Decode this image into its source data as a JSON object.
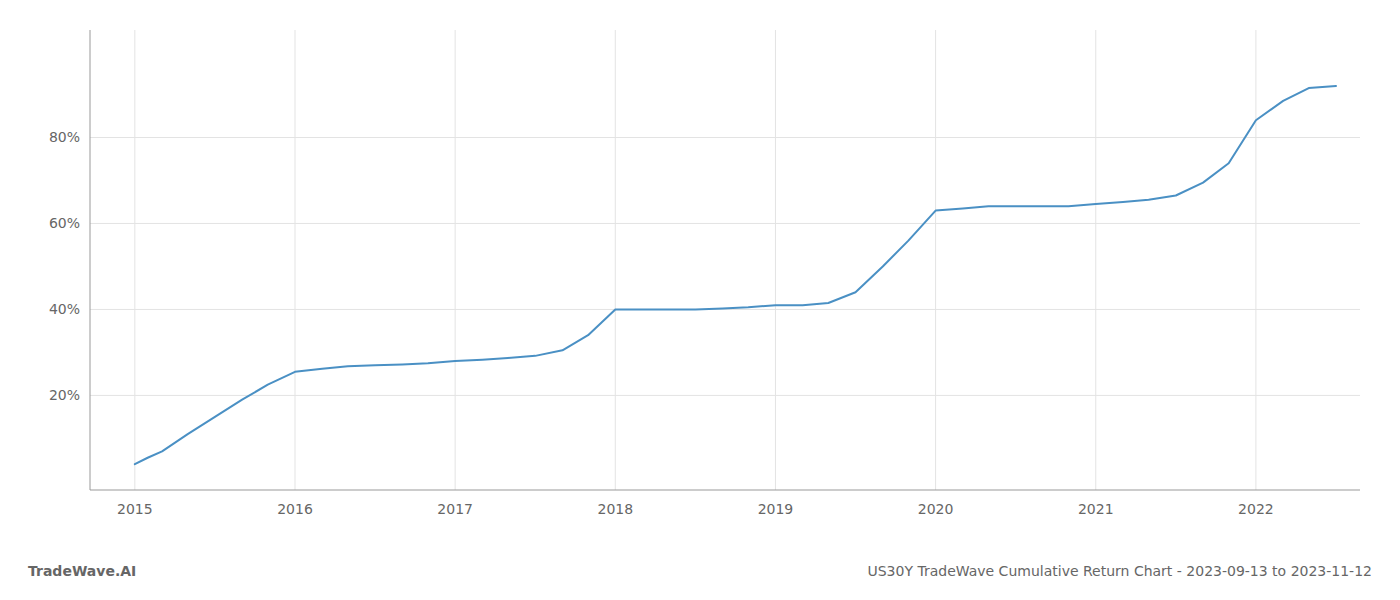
{
  "chart_data": {
    "type": "line",
    "x": [
      2015.0,
      2015.08,
      2015.17,
      2015.33,
      2015.5,
      2015.67,
      2015.83,
      2016.0,
      2016.17,
      2016.33,
      2016.5,
      2016.67,
      2016.83,
      2017.0,
      2017.17,
      2017.33,
      2017.5,
      2017.67,
      2017.83,
      2018.0,
      2018.17,
      2018.33,
      2018.5,
      2018.67,
      2018.83,
      2019.0,
      2019.17,
      2019.33,
      2019.5,
      2019.67,
      2019.83,
      2020.0,
      2020.17,
      2020.33,
      2020.5,
      2020.67,
      2020.83,
      2021.0,
      2021.17,
      2021.33,
      2021.5,
      2021.67,
      2021.83,
      2022.0,
      2022.17,
      2022.33,
      2022.5
    ],
    "values": [
      4.0,
      5.5,
      7.0,
      11.0,
      15.0,
      19.0,
      22.5,
      25.5,
      26.2,
      26.8,
      27.0,
      27.2,
      27.5,
      28.0,
      28.3,
      28.7,
      29.2,
      30.5,
      34.0,
      40.0,
      40.0,
      40.0,
      40.0,
      40.2,
      40.5,
      41.0,
      41.0,
      41.5,
      44.0,
      50.0,
      56.0,
      63.0,
      63.5,
      64.0,
      64.0,
      64.0,
      64.0,
      64.5,
      65.0,
      65.5,
      66.5,
      69.5,
      74.0,
      84.0,
      88.5,
      91.5,
      92.0
    ],
    "color": "#4a90c4",
    "xlim": [
      2014.72,
      2022.65
    ],
    "ylim": [
      -2,
      105
    ],
    "xticks": [
      2015,
      2016,
      2017,
      2018,
      2019,
      2020,
      2021,
      2022
    ],
    "yticks": [
      {
        "value": 20,
        "label": "20%"
      },
      {
        "value": 40,
        "label": "40%"
      },
      {
        "value": 60,
        "label": "60%"
      },
      {
        "value": 80,
        "label": "80%"
      }
    ],
    "grid": true,
    "annotations": [
      "TradeWave.AI",
      "US30Y TradeWave Cumulative Return Chart - 2023-09-13 to 2023-11-12"
    ]
  }
}
